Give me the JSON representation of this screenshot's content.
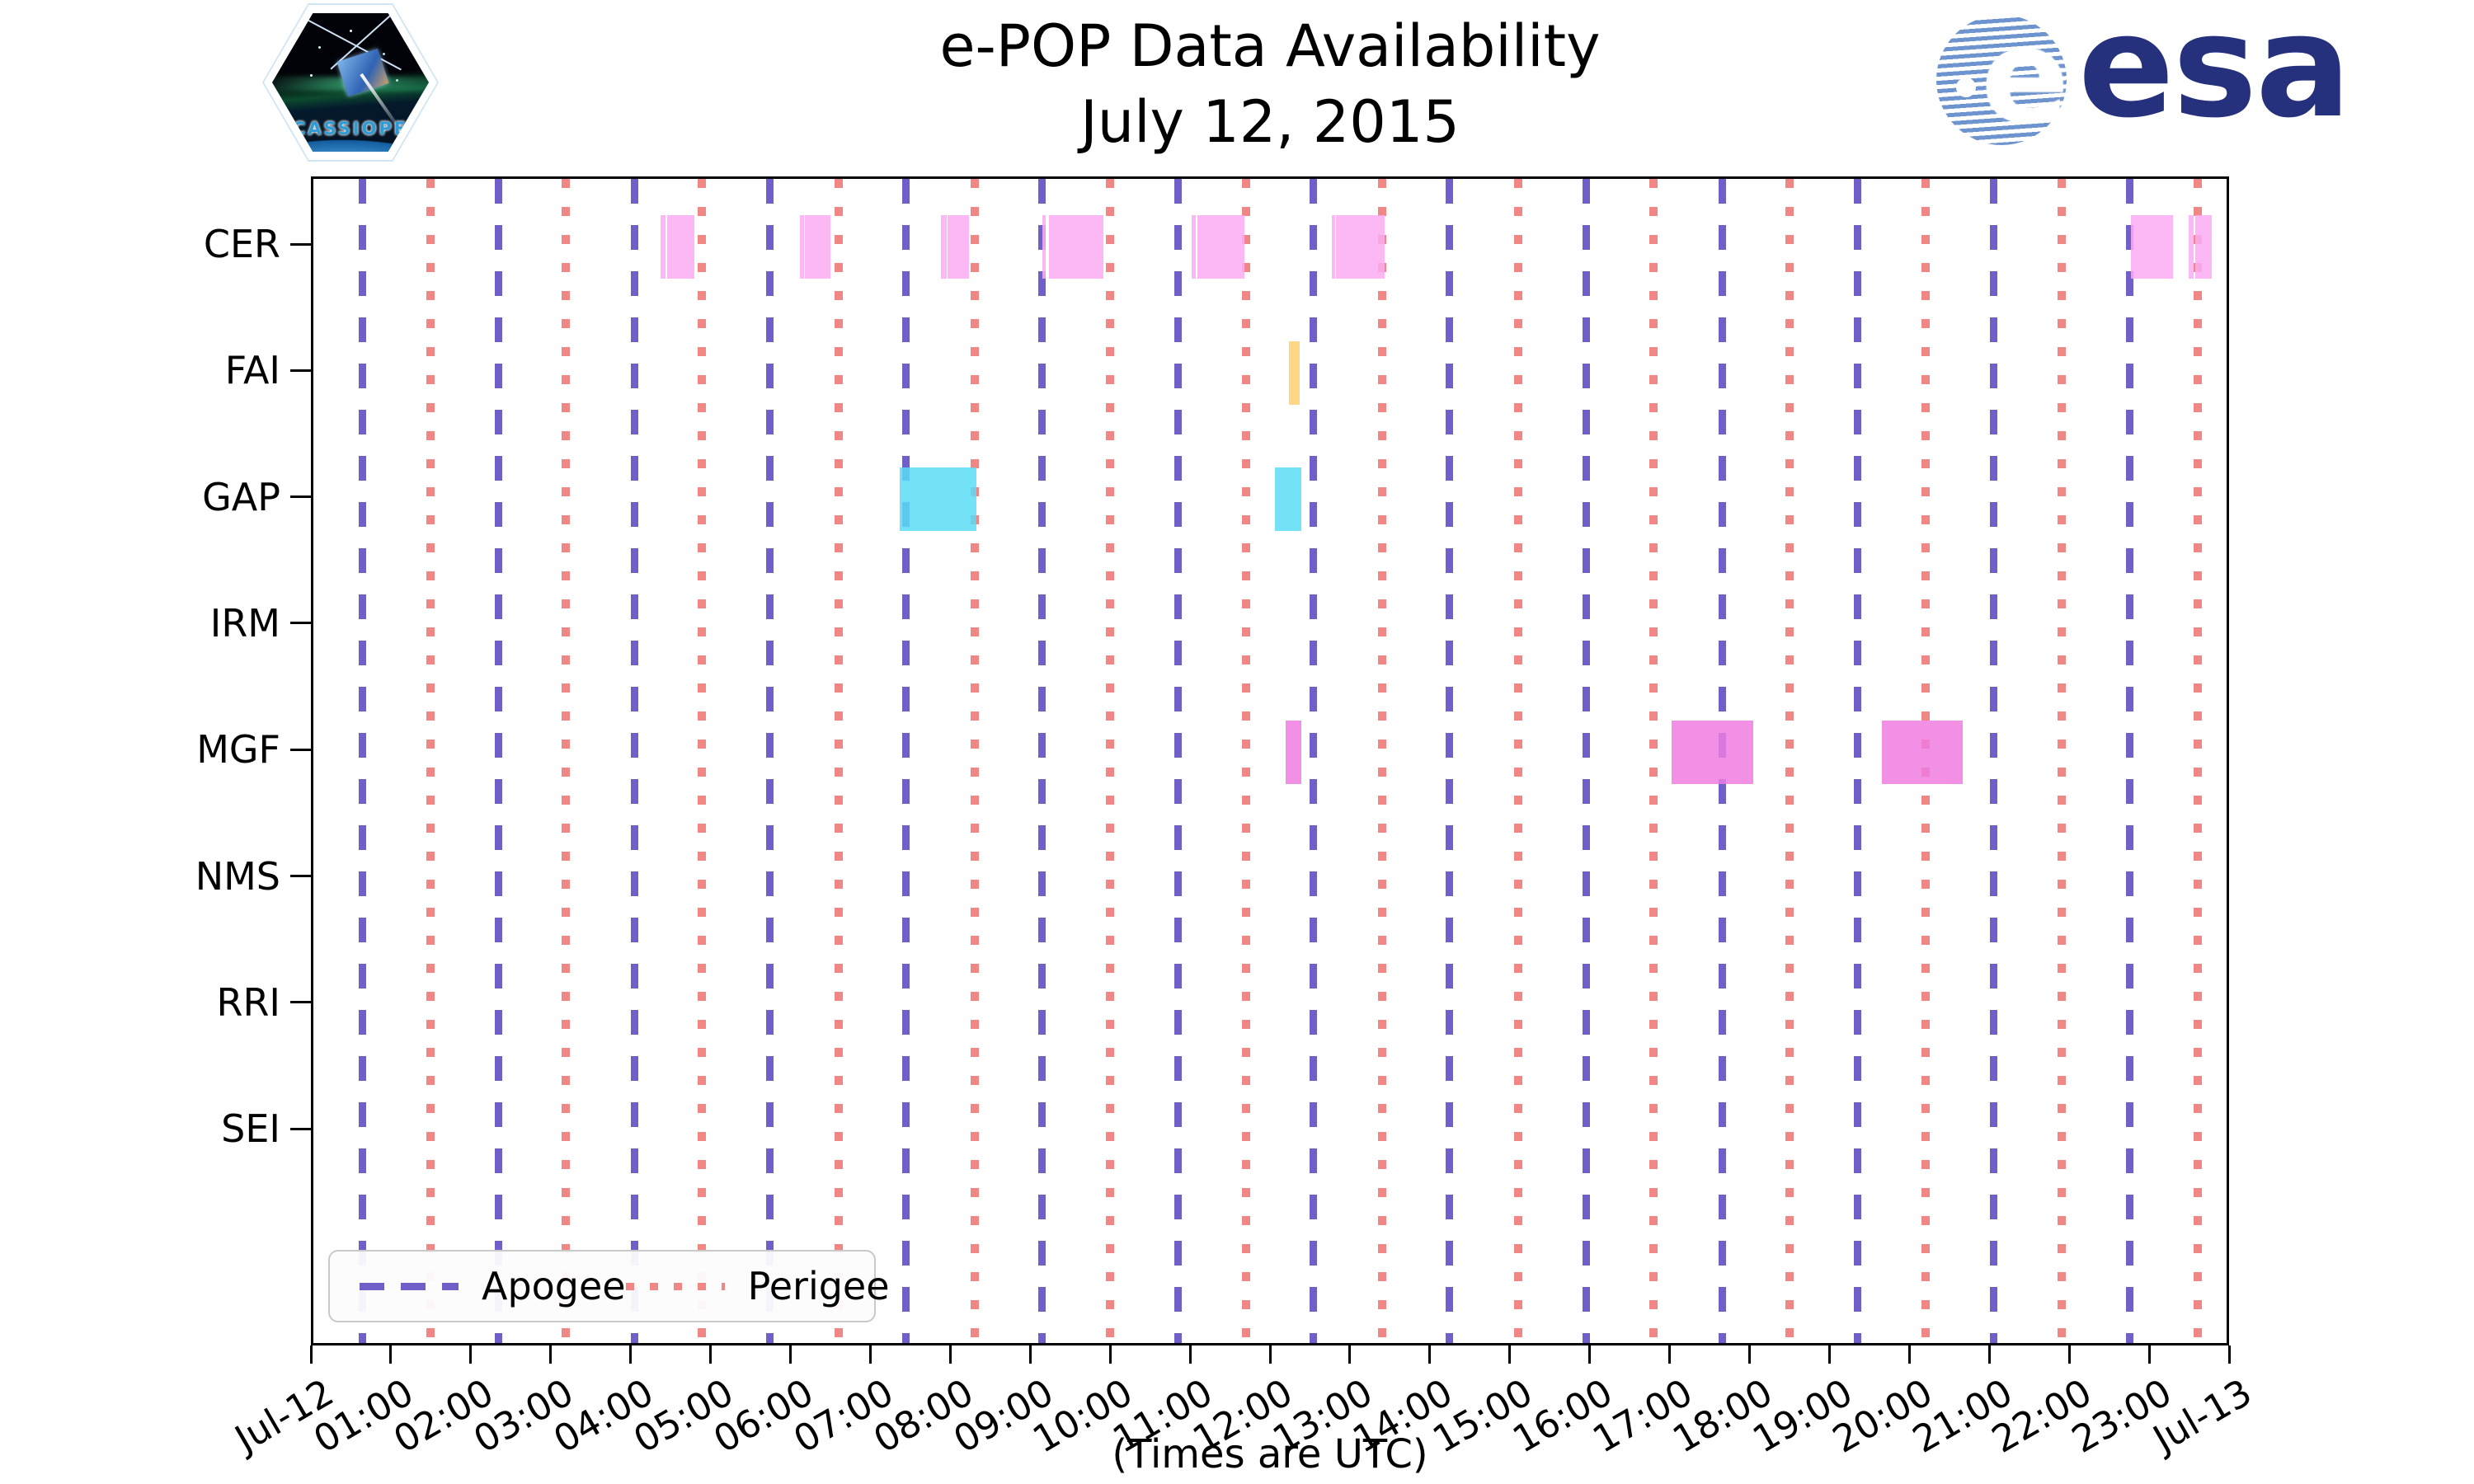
{
  "header": {
    "title": "e-POP Data Availability",
    "subtitle": "July 12, 2015"
  },
  "logos": {
    "cassiope_label": "CASSIOPE",
    "esa_wordmark": "esa",
    "esa_globe_letter": "e"
  },
  "footer": {
    "xlabel": "(Times are UTC)"
  },
  "legend": {
    "apogee_label": "Apogee",
    "perigee_label": "Perigee"
  },
  "colors": {
    "apogee_line": "#6e60c8",
    "perigee_line": "#f08784",
    "CER": "#fbabf2",
    "FAI": "#ffd172",
    "GAP": "#5bdcf4",
    "MGF": "#ee7ce0"
  },
  "chart_data": {
    "type": "gantt",
    "title": "e-POP Data Availability",
    "subtitle": "July 12, 2015",
    "xlabel": "(Times are UTC)",
    "x_axis": {
      "unit": "hours UTC on 2015-07-12",
      "range_hours": [
        0,
        24
      ],
      "tick_interval_hours": 1,
      "tick_labels": [
        "Jul-12",
        "01:00",
        "02:00",
        "03:00",
        "04:00",
        "05:00",
        "06:00",
        "07:00",
        "08:00",
        "09:00",
        "10:00",
        "11:00",
        "12:00",
        "13:00",
        "14:00",
        "15:00",
        "16:00",
        "17:00",
        "18:00",
        "19:00",
        "20:00",
        "21:00",
        "22:00",
        "23:00",
        "Jul-13"
      ]
    },
    "rows": [
      "CER",
      "FAI",
      "GAP",
      "IRM",
      "MGF",
      "NMS",
      "RRI",
      "SEI"
    ],
    "legend": [
      "Apogee",
      "Perigee"
    ],
    "apogee_times_h": [
      0.61,
      2.31,
      4.01,
      5.71,
      7.41,
      9.11,
      10.81,
      12.51,
      14.21,
      15.92,
      17.62,
      19.32,
      21.02,
      22.72
    ],
    "perigee_times_h": [
      1.45,
      3.15,
      4.85,
      6.56,
      8.26,
      9.96,
      11.66,
      13.36,
      15.06,
      16.76,
      18.46,
      20.16,
      21.86,
      23.57
    ],
    "intervals": [
      {
        "row": "CER",
        "start_h": 4.34,
        "end_h": 4.41
      },
      {
        "row": "CER",
        "start_h": 4.43,
        "end_h": 4.77
      },
      {
        "row": "CER",
        "start_h": 6.09,
        "end_h": 6.14
      },
      {
        "row": "CER",
        "start_h": 6.15,
        "end_h": 6.47
      },
      {
        "row": "CER",
        "start_h": 7.85,
        "end_h": 7.92
      },
      {
        "row": "CER",
        "start_h": 7.93,
        "end_h": 8.2
      },
      {
        "row": "CER",
        "start_h": 9.12,
        "end_h": 9.16
      },
      {
        "row": "CER",
        "start_h": 9.2,
        "end_h": 9.89
      },
      {
        "row": "CER",
        "start_h": 10.99,
        "end_h": 11.04
      },
      {
        "row": "CER",
        "start_h": 11.06,
        "end_h": 11.65
      },
      {
        "row": "CER",
        "start_h": 12.74,
        "end_h": 12.78
      },
      {
        "row": "CER",
        "start_h": 12.79,
        "end_h": 13.4
      },
      {
        "row": "CER",
        "start_h": 22.74,
        "end_h": 23.27
      },
      {
        "row": "CER",
        "start_h": 23.46,
        "end_h": 23.53
      },
      {
        "row": "CER",
        "start_h": 23.55,
        "end_h": 23.75
      },
      {
        "row": "FAI",
        "start_h": 12.21,
        "end_h": 12.34
      },
      {
        "row": "GAP",
        "start_h": 7.34,
        "end_h": 8.3
      },
      {
        "row": "GAP",
        "start_h": 12.03,
        "end_h": 12.36
      },
      {
        "row": "MGF",
        "start_h": 12.17,
        "end_h": 12.36
      },
      {
        "row": "MGF",
        "start_h": 16.99,
        "end_h": 18.02
      },
      {
        "row": "MGF",
        "start_h": 19.63,
        "end_h": 20.64
      }
    ]
  }
}
